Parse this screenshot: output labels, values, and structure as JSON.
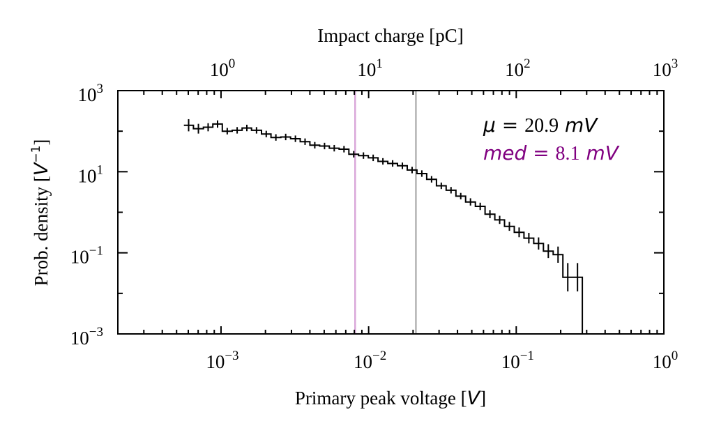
{
  "chart_data": {
    "type": "step",
    "xlabel_text": "Primary peak voltage [",
    "xlabel_unit": "V",
    "xlabel_close": "]",
    "ylabel_text": "Prob. density [",
    "ylabel_unit": "V",
    "ylabel_sup": "−1",
    "ylabel_close": "]",
    "top_xlabel": "Impact charge [pC]",
    "x_scale": "log",
    "y_scale": "log",
    "xlim": [
      0.0002,
      1
    ],
    "ylim": [
      0.001,
      1000
    ],
    "top_xlim": [
      0.2,
      1000
    ],
    "x_ticks": [
      {
        "value": 0.001,
        "base": "10",
        "exp": "−3"
      },
      {
        "value": 0.01,
        "base": "10",
        "exp": "−2"
      },
      {
        "value": 0.1,
        "base": "10",
        "exp": "−1"
      },
      {
        "value": 1,
        "base": "10",
        "exp": "0"
      }
    ],
    "y_ticks": [
      {
        "value": 0.001,
        "base": "10",
        "exp": "−3"
      },
      {
        "value": 0.1,
        "base": "10",
        "exp": "−1"
      },
      {
        "value": 10,
        "base": "10",
        "exp": "1"
      },
      {
        "value": 1000,
        "base": "10",
        "exp": "3"
      }
    ],
    "top_ticks": [
      {
        "value": 1,
        "base": "10",
        "exp": "0"
      },
      {
        "value": 10,
        "base": "10",
        "exp": "1"
      },
      {
        "value": 100,
        "base": "10",
        "exp": "2"
      },
      {
        "value": 1000,
        "base": "10",
        "exp": "3"
      }
    ],
    "bin_edges": [
      0.00056,
      0.00065,
      0.00076,
      0.00088,
      0.00102,
      0.00119,
      0.00139,
      0.00161,
      0.00188,
      0.00218,
      0.00254,
      0.00296,
      0.00344,
      0.004,
      0.00466,
      0.00542,
      0.00631,
      0.00735,
      0.00855,
      0.00995,
      0.01158,
      0.01348,
      0.01569,
      0.01826,
      0.02125,
      0.02474,
      0.02879,
      0.03351,
      0.039,
      0.04539,
      0.05283,
      0.06149,
      0.07157,
      0.0833,
      0.09695,
      0.11284,
      0.13133,
      0.15286,
      0.17792,
      0.20707,
      0.24101,
      0.28051,
      0.3265
    ],
    "counts": [
      140,
      115,
      125,
      150,
      100,
      105,
      120,
      105,
      85,
      70,
      72,
      65,
      55,
      45,
      43,
      38,
      36,
      27,
      25,
      22,
      18,
      16,
      14,
      11,
      9,
      6.5,
      4.5,
      3.5,
      2.5,
      1.8,
      1.4,
      0.9,
      0.65,
      0.45,
      0.32,
      0.23,
      0.17,
      0.11,
      0.09,
      0.025,
      0.025,
      0.001
    ],
    "errors": [
      0.15,
      0.12,
      0.1,
      0.09,
      0.08,
      0.08,
      0.08,
      0.08,
      0.08,
      0.08,
      0.08,
      0.08,
      0.08,
      0.08,
      0.08,
      0.08,
      0.08,
      0.08,
      0.08,
      0.08,
      0.08,
      0.08,
      0.08,
      0.08,
      0.08,
      0.08,
      0.08,
      0.08,
      0.08,
      0.09,
      0.09,
      0.1,
      0.1,
      0.11,
      0.12,
      0.13,
      0.15,
      0.17,
      0.2,
      0.35,
      0.35,
      0
    ],
    "vlines": [
      {
        "x": 0.0081,
        "color": "#d9a8d9"
      },
      {
        "x": 0.0209,
        "color": "#b3b3b3"
      }
    ],
    "annotations": {
      "mean": {
        "symbol": "μ",
        "eq": " = ",
        "value": "20.9",
        "unit": " mV",
        "color": "#000000"
      },
      "median": {
        "symbol": "med",
        "eq": " = ",
        "value": "8.1",
        "unit": " mV",
        "color": "#800080"
      }
    },
    "grid": false,
    "line_color": "#000000"
  }
}
